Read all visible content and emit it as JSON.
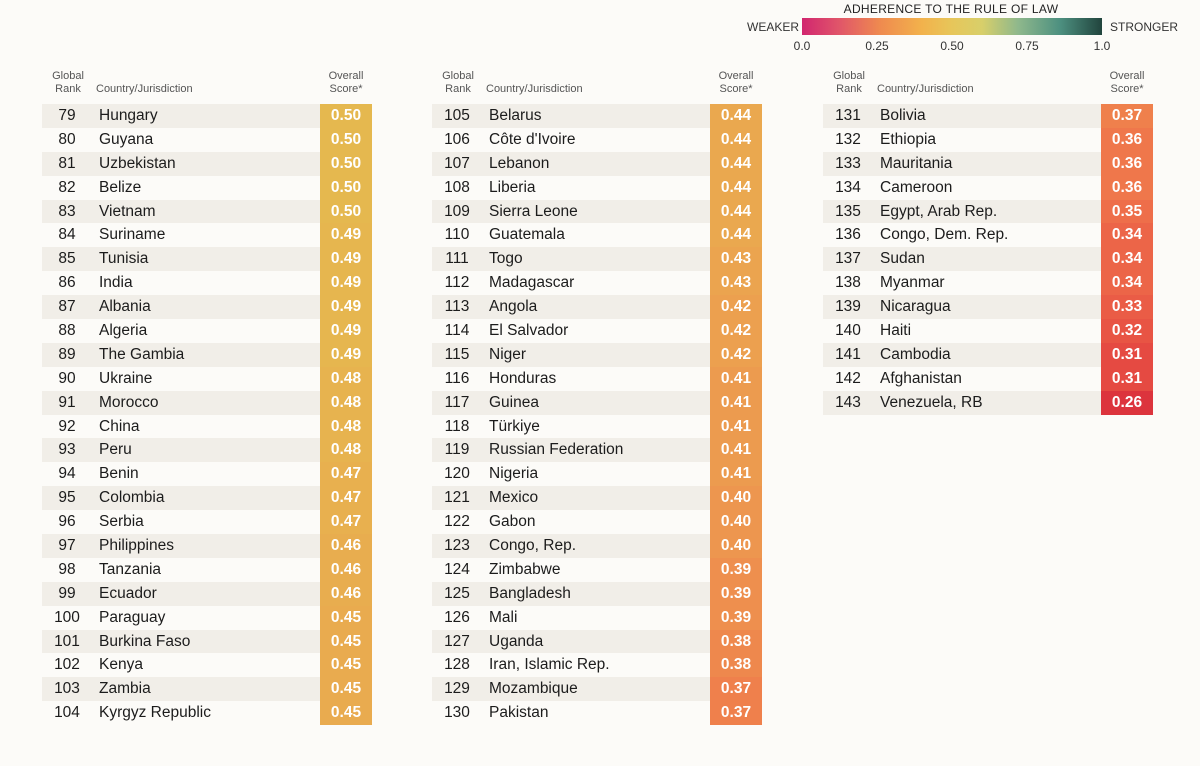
{
  "chart_data": {
    "type": "table",
    "legend": {
      "title": "ADHERENCE TO THE RULE OF LAW",
      "weaker": "WEAKER",
      "stronger": "STRONGER",
      "ticks": [
        "0.0",
        "0.25",
        "0.50",
        "0.75",
        "1.0"
      ]
    },
    "headers": {
      "rank": [
        "Global",
        "Rank"
      ],
      "country": "Country/Jurisdiction",
      "score": [
        "Overall",
        "Score*"
      ]
    },
    "columns": [
      {
        "rows": [
          {
            "rank": "79",
            "country": "Hungary",
            "score": "0.50"
          },
          {
            "rank": "80",
            "country": "Guyana",
            "score": "0.50"
          },
          {
            "rank": "81",
            "country": "Uzbekistan",
            "score": "0.50"
          },
          {
            "rank": "82",
            "country": "Belize",
            "score": "0.50"
          },
          {
            "rank": "83",
            "country": "Vietnam",
            "score": "0.50"
          },
          {
            "rank": "84",
            "country": "Suriname",
            "score": "0.49"
          },
          {
            "rank": "85",
            "country": "Tunisia",
            "score": "0.49"
          },
          {
            "rank": "86",
            "country": "India",
            "score": "0.49"
          },
          {
            "rank": "87",
            "country": "Albania",
            "score": "0.49"
          },
          {
            "rank": "88",
            "country": "Algeria",
            "score": "0.49"
          },
          {
            "rank": "89",
            "country": "The Gambia",
            "score": "0.49"
          },
          {
            "rank": "90",
            "country": "Ukraine",
            "score": "0.48"
          },
          {
            "rank": "91",
            "country": "Morocco",
            "score": "0.48"
          },
          {
            "rank": "92",
            "country": "China",
            "score": "0.48"
          },
          {
            "rank": "93",
            "country": "Peru",
            "score": "0.48"
          },
          {
            "rank": "94",
            "country": "Benin",
            "score": "0.47"
          },
          {
            "rank": "95",
            "country": "Colombia",
            "score": "0.47"
          },
          {
            "rank": "96",
            "country": "Serbia",
            "score": "0.47"
          },
          {
            "rank": "97",
            "country": "Philippines",
            "score": "0.46"
          },
          {
            "rank": "98",
            "country": "Tanzania",
            "score": "0.46"
          },
          {
            "rank": "99",
            "country": "Ecuador",
            "score": "0.46"
          },
          {
            "rank": "100",
            "country": "Paraguay",
            "score": "0.45"
          },
          {
            "rank": "101",
            "country": "Burkina Faso",
            "score": "0.45"
          },
          {
            "rank": "102",
            "country": "Kenya",
            "score": "0.45"
          },
          {
            "rank": "103",
            "country": "Zambia",
            "score": "0.45"
          },
          {
            "rank": "104",
            "country": "Kyrgyz Republic",
            "score": "0.45"
          }
        ]
      },
      {
        "rows": [
          {
            "rank": "105",
            "country": "Belarus",
            "score": "0.44"
          },
          {
            "rank": "106",
            "country": "Côte d'Ivoire",
            "score": "0.44"
          },
          {
            "rank": "107",
            "country": "Lebanon",
            "score": "0.44"
          },
          {
            "rank": "108",
            "country": "Liberia",
            "score": "0.44"
          },
          {
            "rank": "109",
            "country": "Sierra Leone",
            "score": "0.44"
          },
          {
            "rank": "110",
            "country": "Guatemala",
            "score": "0.44"
          },
          {
            "rank": "111",
            "country": "Togo",
            "score": "0.43"
          },
          {
            "rank": "112",
            "country": "Madagascar",
            "score": "0.43"
          },
          {
            "rank": "113",
            "country": "Angola",
            "score": "0.42"
          },
          {
            "rank": "114",
            "country": "El Salvador",
            "score": "0.42"
          },
          {
            "rank": "115",
            "country": "Niger",
            "score": "0.42"
          },
          {
            "rank": "116",
            "country": "Honduras",
            "score": "0.41"
          },
          {
            "rank": "117",
            "country": "Guinea",
            "score": "0.41"
          },
          {
            "rank": "118",
            "country": "Türkiye",
            "score": "0.41"
          },
          {
            "rank": "119",
            "country": "Russian Federation",
            "score": "0.41"
          },
          {
            "rank": "120",
            "country": "Nigeria",
            "score": "0.41"
          },
          {
            "rank": "121",
            "country": "Mexico",
            "score": "0.40"
          },
          {
            "rank": "122",
            "country": "Gabon",
            "score": "0.40"
          },
          {
            "rank": "123",
            "country": "Congo, Rep.",
            "score": "0.40"
          },
          {
            "rank": "124",
            "country": "Zimbabwe",
            "score": "0.39"
          },
          {
            "rank": "125",
            "country": "Bangladesh",
            "score": "0.39"
          },
          {
            "rank": "126",
            "country": "Mali",
            "score": "0.39"
          },
          {
            "rank": "127",
            "country": "Uganda",
            "score": "0.38"
          },
          {
            "rank": "128",
            "country": "Iran, Islamic Rep.",
            "score": "0.38"
          },
          {
            "rank": "129",
            "country": "Mozambique",
            "score": "0.37"
          },
          {
            "rank": "130",
            "country": "Pakistan",
            "score": "0.37"
          }
        ]
      },
      {
        "rows": [
          {
            "rank": "131",
            "country": "Bolivia",
            "score": "0.37"
          },
          {
            "rank": "132",
            "country": "Ethiopia",
            "score": "0.36"
          },
          {
            "rank": "133",
            "country": "Mauritania",
            "score": "0.36"
          },
          {
            "rank": "134",
            "country": "Cameroon",
            "score": "0.36"
          },
          {
            "rank": "135",
            "country": "Egypt, Arab Rep.",
            "score": "0.35"
          },
          {
            "rank": "136",
            "country": "Congo, Dem. Rep.",
            "score": "0.34"
          },
          {
            "rank": "137",
            "country": "Sudan",
            "score": "0.34"
          },
          {
            "rank": "138",
            "country": "Myanmar",
            "score": "0.34"
          },
          {
            "rank": "139",
            "country": "Nicaragua",
            "score": "0.33"
          },
          {
            "rank": "140",
            "country": "Haiti",
            "score": "0.32"
          },
          {
            "rank": "141",
            "country": "Cambodia",
            "score": "0.31"
          },
          {
            "rank": "142",
            "country": "Afghanistan",
            "score": "0.31"
          },
          {
            "rank": "143",
            "country": "Venezuela, RB",
            "score": "0.26"
          }
        ]
      }
    ],
    "score_colors": {
      "0.50": "#e5b84f",
      "0.49": "#e6b64f",
      "0.48": "#e7b34f",
      "0.47": "#e8b04f",
      "0.46": "#e8ad4f",
      "0.45": "#e9ab4f",
      "0.44": "#eaa84f",
      "0.43": "#eba44f",
      "0.42": "#eca04f",
      "0.41": "#ec9b4f",
      "0.40": "#ed964f",
      "0.39": "#ee8f4e",
      "0.38": "#ee884d",
      "0.37": "#ef804c",
      "0.36": "#ef774b",
      "0.35": "#ee6e4a",
      "0.34": "#ec6548",
      "0.33": "#ea5c46",
      "0.32": "#e85444",
      "0.31": "#e54a42",
      "0.26": "#dc343d"
    }
  }
}
